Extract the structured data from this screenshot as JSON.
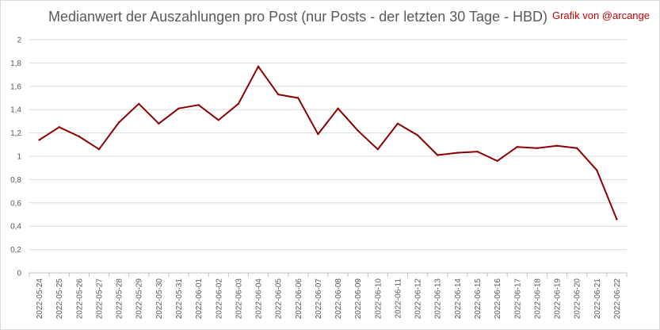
{
  "credit": "Grafik von @arcange",
  "chart_data": {
    "type": "line",
    "title": "Medianwert der Auszahlungen pro Post (nur Posts - der letzten 30 Tage - HBD)",
    "xlabel": "",
    "ylabel": "",
    "ylim": [
      0,
      2
    ],
    "y_ticks": [
      0,
      0.2,
      0.4,
      0.6,
      0.8,
      1,
      1.2,
      1.4,
      1.6,
      1.8,
      2
    ],
    "y_tick_labels": [
      "0",
      "0,2",
      "0,4",
      "0,6",
      "0,8",
      "1",
      "1,2",
      "1,4",
      "1,6",
      "1,8",
      "2"
    ],
    "grid": true,
    "legend": "none",
    "line_color": "#8b0000",
    "categories": [
      "2022-05-24",
      "2022-05-25",
      "2022-05-26",
      "2022-05-27",
      "2022-05-28",
      "2022-05-29",
      "2022-05-30",
      "2022-05-31",
      "2022-06-01",
      "2022-06-02",
      "2022-06-03",
      "2022-06-04",
      "2022-06-05",
      "2022-06-06",
      "2022-06-07",
      "2022-06-08",
      "2022-06-09",
      "2022-06-10",
      "2022-06-11",
      "2022-06-12",
      "2022-06-13",
      "2022-06-14",
      "2022-06-15",
      "2022-06-16",
      "2022-06-17",
      "2022-06-18",
      "2022-06-19",
      "2022-06-20",
      "2022-06-21",
      "2022-06-22"
    ],
    "series": [
      {
        "values": [
          1.14,
          1.25,
          1.17,
          1.06,
          1.29,
          1.45,
          1.28,
          1.41,
          1.44,
          1.31,
          1.45,
          1.77,
          1.53,
          1.5,
          1.19,
          1.41,
          1.22,
          1.06,
          1.28,
          1.18,
          1.01,
          1.03,
          1.04,
          0.96,
          1.08,
          1.07,
          1.09,
          1.07,
          0.88,
          0.46
        ]
      }
    ]
  }
}
